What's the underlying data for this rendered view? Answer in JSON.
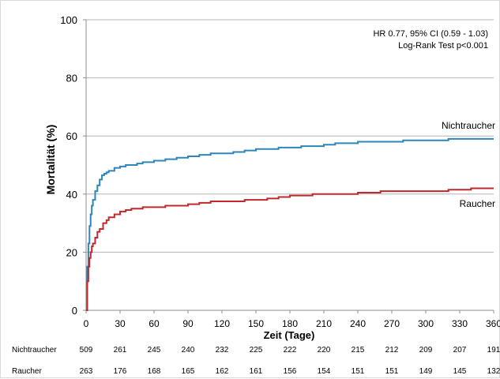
{
  "chart_data": {
    "type": "line",
    "ylabel": "Mortalität (%)",
    "xlabel": "Zeit (Tage)",
    "xlim": [
      0,
      360
    ],
    "ylim": [
      0,
      100
    ],
    "x_ticks": [
      0,
      30,
      60,
      90,
      120,
      150,
      180,
      210,
      240,
      270,
      300,
      330,
      360
    ],
    "y_ticks": [
      0,
      20,
      40,
      60,
      80,
      100
    ],
    "grid": true,
    "annotation_lines": [
      "HR 0.77, 95% CI (0.59 - 1.03)",
      "Log-Rank Test p<0.001"
    ],
    "series": [
      {
        "name": "Nichtraucher",
        "color": "#2e86b8",
        "x": [
          0,
          1,
          2,
          3,
          4,
          5,
          6,
          8,
          10,
          12,
          14,
          16,
          18,
          20,
          25,
          30,
          35,
          40,
          45,
          50,
          60,
          70,
          80,
          90,
          100,
          110,
          120,
          130,
          140,
          150,
          160,
          170,
          180,
          190,
          200,
          210,
          220,
          240,
          260,
          280,
          300,
          320,
          340,
          360
        ],
        "y": [
          0,
          15,
          23,
          29,
          33,
          36,
          38,
          41,
          43,
          45,
          46.5,
          47,
          47.5,
          48,
          49,
          49.5,
          50,
          50,
          50.5,
          51,
          51.5,
          52,
          52.5,
          53,
          53.5,
          54,
          54,
          54.5,
          55,
          55.5,
          55.5,
          56,
          56,
          56.5,
          56.5,
          57,
          57.5,
          58,
          58,
          58.5,
          58.5,
          59,
          59,
          59
        ]
      },
      {
        "name": "Raucher",
        "color": "#c0282c",
        "x": [
          0,
          1,
          2,
          3,
          4,
          5,
          6,
          8,
          10,
          12,
          15,
          18,
          20,
          25,
          30,
          35,
          40,
          50,
          60,
          70,
          80,
          90,
          100,
          110,
          120,
          140,
          150,
          160,
          170,
          180,
          200,
          220,
          240,
          260,
          280,
          300,
          320,
          340,
          360
        ],
        "y": [
          0,
          10,
          15,
          18,
          20,
          22,
          23,
          25,
          27,
          28,
          30,
          31,
          32,
          33,
          34,
          34.5,
          35,
          35.5,
          35.5,
          36,
          36,
          36.5,
          37,
          37.5,
          37.5,
          38,
          38,
          38.5,
          39,
          39.5,
          40,
          40,
          40.5,
          41,
          41,
          41,
          41.5,
          42,
          42
        ]
      }
    ],
    "risk_table": {
      "rows": [
        {
          "label": "Nichtraucher",
          "values": [
            "509",
            "261",
            "245",
            "240",
            "232",
            "225",
            "222",
            "220",
            "215",
            "212",
            "209",
            "207",
            "191"
          ]
        },
        {
          "label": "Raucher",
          "values": [
            "263",
            "176",
            "168",
            "165",
            "162",
            "161",
            "156",
            "154",
            "151",
            "151",
            "149",
            "145",
            "132"
          ]
        }
      ]
    }
  }
}
